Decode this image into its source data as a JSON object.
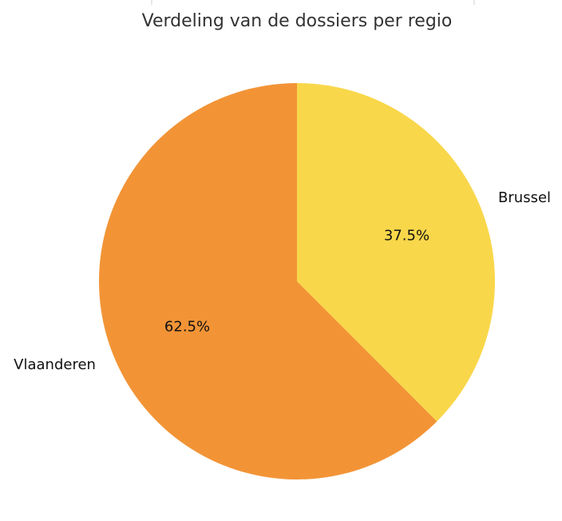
{
  "chart_data": {
    "type": "pie",
    "title": "Verdeling van de dossiers per regio",
    "slices": [
      {
        "label": "Brussel",
        "value": 37.5,
        "pct_label": "37.5%",
        "color": "#F9D74A"
      },
      {
        "label": "Vlaanderen",
        "value": 62.5,
        "pct_label": "62.5%",
        "color": "#F29436"
      }
    ],
    "start_angle_deg": 90,
    "direction": "clockwise",
    "legend": "none"
  }
}
